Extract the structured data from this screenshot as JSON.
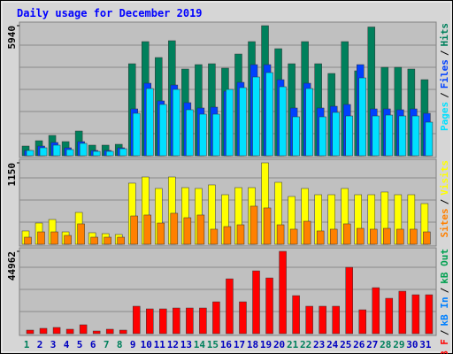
{
  "chart_data": [
    {
      "type": "bar",
      "title": "Daily usage for December 2019",
      "ylim": [
        0,
        5940
      ],
      "yticks": [
        5940
      ],
      "grid": true,
      "legend_separator": "/",
      "series": [
        {
          "name": "Pages",
          "color": "#00e0ff",
          "values": [
            242,
            364,
            485,
            283,
            566,
            202,
            202,
            323,
            1939,
            3070,
            2343,
            3030,
            2101,
            1899,
            1899,
            3030,
            3111,
            3596,
            3798,
            3151,
            1778,
            3070,
            1778,
            1980,
            1818,
            3555,
            1818,
            1858,
            1818,
            1818,
            1535
          ]
        },
        {
          "name": "Files",
          "color": "#0040ff",
          "values": [
            242,
            444,
            606,
            364,
            646,
            242,
            242,
            364,
            2141,
            3313,
            2505,
            3232,
            2424,
            2182,
            2222,
            2949,
            3353,
            4161,
            4161,
            3474,
            2182,
            3313,
            2182,
            2262,
            2343,
            4161,
            2141,
            2141,
            2101,
            2141,
            1939
          ]
        },
        {
          "name": "Hits",
          "color": "#00805c",
          "values": [
            444,
            687,
            929,
            646,
            1131,
            485,
            485,
            525,
            4202,
            5212,
            4485,
            5253,
            3960,
            4162,
            4202,
            4000,
            4646,
            5212,
            5940,
            4889,
            4202,
            5212,
            4202,
            3758,
            5212,
            3879,
            5880,
            4040,
            4040,
            3960,
            3475
          ]
        }
      ]
    },
    {
      "type": "bar",
      "ylim": [
        0,
        1150
      ],
      "yticks": [
        1150
      ],
      "grid": true,
      "legend_separator": "/",
      "series": [
        {
          "name": "Sites",
          "color": "#ff8000",
          "values": [
            100,
            175,
            175,
            125,
            288,
            100,
            100,
            100,
            400,
            413,
            300,
            438,
            375,
            413,
            213,
            250,
            275,
            538,
            513,
            275,
            213,
            325,
            188,
            213,
            288,
            225,
            213,
            225,
            213,
            213,
            175
          ]
        },
        {
          "name": "Visits",
          "color": "#ffff00",
          "values": [
            188,
            300,
            350,
            175,
            450,
            163,
            150,
            138,
            863,
            950,
            788,
            950,
            800,
            788,
            838,
            700,
            800,
            800,
            1150,
            875,
            675,
            788,
            700,
            700,
            788,
            700,
            700,
            738,
            700,
            700,
            575
          ]
        }
      ]
    },
    {
      "type": "bar",
      "ylim": [
        0,
        44962
      ],
      "yticks": [
        44962
      ],
      "grid": true,
      "legend_separator": "/",
      "categories": [
        "1",
        "2",
        "3",
        "4",
        "5",
        "6",
        "7",
        "8",
        "9",
        "10",
        "11",
        "12",
        "13",
        "14",
        "15",
        "16",
        "17",
        "18",
        "19",
        "20",
        "21",
        "22",
        "23",
        "24",
        "25",
        "26",
        "27",
        "28",
        "29",
        "30",
        "31"
      ],
      "category_colors": [
        "#00805c",
        "#0000c0",
        "#0000c0",
        "#0000c0",
        "#0000c0",
        "#0000c0",
        "#00805c",
        "#00805c",
        "#0000c0",
        "#0000c0",
        "#0000c0",
        "#0000c0",
        "#0000c0",
        "#00805c",
        "#00805c",
        "#0000c0",
        "#0000c0",
        "#0000c0",
        "#0000c0",
        "#0000c0",
        "#00805c",
        "#00805c",
        "#0000c0",
        "#0000c0",
        "#0000c0",
        "#0000c0",
        "#0000c0",
        "#00805c",
        "#00805c",
        "#0000c0",
        "#0000c0"
      ],
      "series": [
        {
          "name": "kB F",
          "color": "#ff0000",
          "values": [
            1934,
            2901,
            3384,
            2417,
            4834,
            1450,
            2417,
            1934,
            14980,
            13530,
            13530,
            14010,
            14010,
            14010,
            17390,
            29950,
            17390,
            34300,
            30430,
            44962,
            20770,
            14980,
            14980,
            14980,
            36230,
            13040,
            25120,
            19320,
            23190,
            21250,
            21250
          ]
        },
        {
          "name": "kB In",
          "color": "#0080ff",
          "values": [
            0,
            0,
            0,
            0,
            0,
            0,
            0,
            0,
            0,
            0,
            0,
            0,
            0,
            0,
            0,
            0,
            0,
            0,
            0,
            0,
            0,
            0,
            0,
            0,
            0,
            0,
            0,
            0,
            0,
            0,
            0
          ]
        },
        {
          "name": "kB Out",
          "color": "#00a050",
          "values": [
            0,
            0,
            0,
            0,
            0,
            0,
            0,
            0,
            0,
            0,
            0,
            0,
            0,
            0,
            0,
            0,
            0,
            0,
            0,
            0,
            0,
            0,
            0,
            0,
            0,
            0,
            0,
            0,
            0,
            0,
            0
          ]
        }
      ]
    }
  ]
}
